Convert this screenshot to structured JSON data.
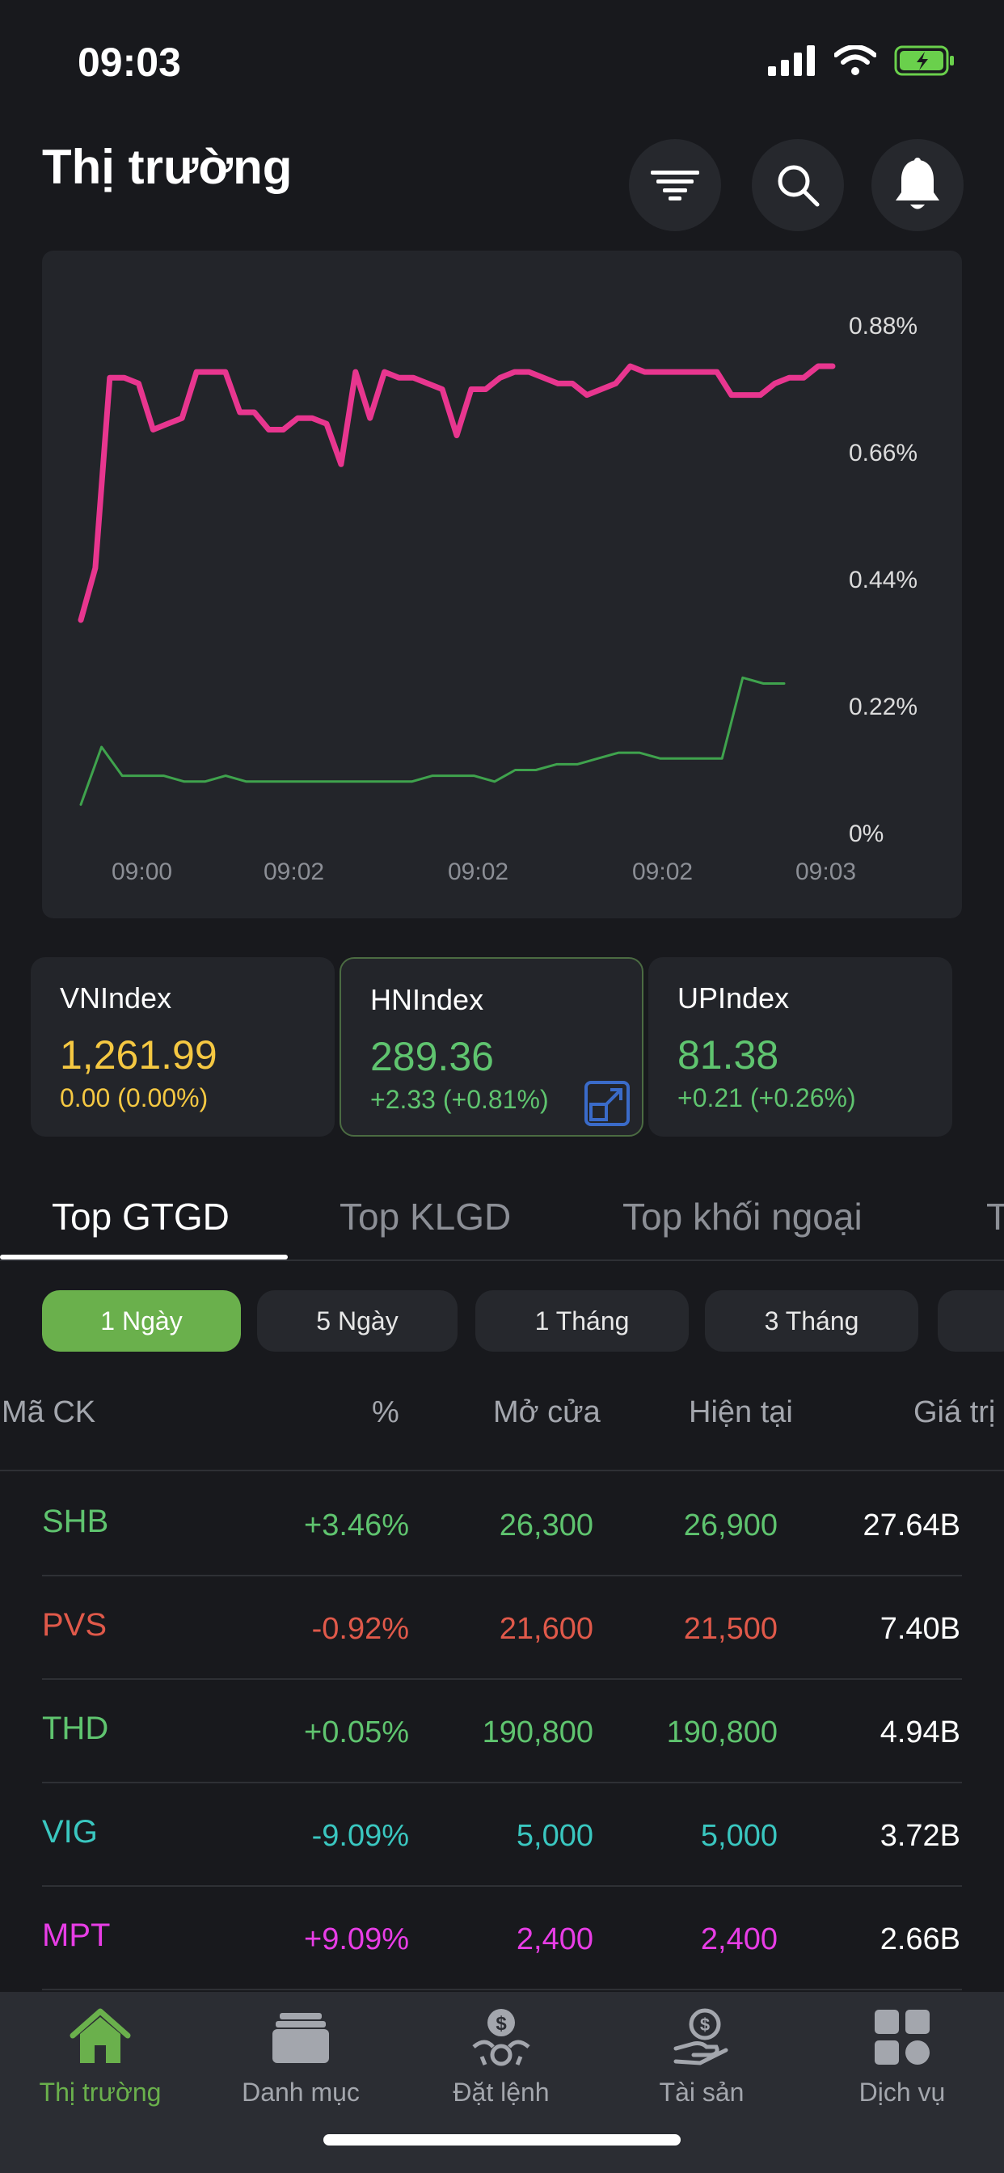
{
  "status_bar": {
    "time": "09:03"
  },
  "header": {
    "title": "Thị trường"
  },
  "chart": {
    "y_ticks": [
      "0.88%",
      "0.66%",
      "0.44%",
      "0.22%",
      "0%"
    ],
    "x_ticks": [
      "09:00",
      "09:02",
      "09:02",
      "09:02",
      "09:03"
    ]
  },
  "chart_data": {
    "type": "line",
    "ylim": [
      0,
      0.88
    ],
    "y_ticks": [
      "0.88%",
      "0.66%",
      "0.44%",
      "0.22%",
      "0%"
    ],
    "x_ticks": [
      "09:00",
      "09:02",
      "09:02",
      "09:02",
      "09:03"
    ],
    "grid": false,
    "series": [
      {
        "color": "#e8368f",
        "values": [
          0.37,
          0.46,
          0.79,
          0.79,
          0.78,
          0.7,
          0.71,
          0.72,
          0.8,
          0.8,
          0.8,
          0.73,
          0.73,
          0.7,
          0.7,
          0.72,
          0.72,
          0.71,
          0.64,
          0.8,
          0.72,
          0.8,
          0.79,
          0.79,
          0.78,
          0.77,
          0.69,
          0.77,
          0.77,
          0.79,
          0.8,
          0.8,
          0.79,
          0.78,
          0.78,
          0.76,
          0.77,
          0.78,
          0.81,
          0.8,
          0.8,
          0.8,
          0.8,
          0.8,
          0.8,
          0.76,
          0.76,
          0.76,
          0.78,
          0.79,
          0.79,
          0.81,
          0.81
        ]
      },
      {
        "color": "#3fa34d",
        "values": [
          0.05,
          0.15,
          0.1,
          0.1,
          0.1,
          0.09,
          0.09,
          0.1,
          0.09,
          0.09,
          0.09,
          0.09,
          0.09,
          0.09,
          0.09,
          0.09,
          0.09,
          0.1,
          0.1,
          0.1,
          0.09,
          0.11,
          0.11,
          0.12,
          0.12,
          0.13,
          0.14,
          0.14,
          0.13,
          0.13,
          0.13,
          0.13,
          0.27,
          0.26,
          0.26
        ]
      }
    ]
  },
  "indices": [
    {
      "name": "VNIndex",
      "value": "1,261.99",
      "change": "0.00 (0.00%)",
      "color": "#f5c842"
    },
    {
      "name": "HNIndex",
      "value": "289.36",
      "change": "+2.33 (+0.81%)",
      "color": "#5fc46f"
    },
    {
      "name": "UPIndex",
      "value": "81.38",
      "change": "+0.21 (+0.26%)",
      "color": "#5fc46f"
    }
  ],
  "tabs": [
    "Top GTGD",
    "Top KLGD",
    "Top khối ngoại",
    "T"
  ],
  "periods": [
    "1 Ngày",
    "5 Ngày",
    "1 Tháng",
    "3 Tháng"
  ],
  "table": {
    "headers": {
      "symbol": "Mã CK",
      "pct": "%",
      "open": "Mở cửa",
      "current": "Hiện tại",
      "value": "Giá trị"
    },
    "rows": [
      {
        "symbol": "SHB",
        "pct": "+3.46%",
        "open": "26,300",
        "current": "26,900",
        "value": "27.64B",
        "color": "#5fc46f"
      },
      {
        "symbol": "PVS",
        "pct": "-0.92%",
        "open": "21,600",
        "current": "21,500",
        "value": "7.40B",
        "color": "#e0594a"
      },
      {
        "symbol": "THD",
        "pct": "+0.05%",
        "open": "190,800",
        "current": "190,800",
        "value": "4.94B",
        "color": "#5fc46f"
      },
      {
        "symbol": "VIG",
        "pct": "-9.09%",
        "open": "5,000",
        "current": "5,000",
        "value": "3.72B",
        "color": "#3ac7c0"
      },
      {
        "symbol": "MPT",
        "pct": "+9.09%",
        "open": "2,400",
        "current": "2,400",
        "value": "2.66B",
        "color": "#e83de6"
      }
    ]
  },
  "nav": [
    {
      "label": "Thị trường",
      "icon": "home-icon"
    },
    {
      "label": "Danh mục",
      "icon": "portfolio-icon"
    },
    {
      "label": "Đặt lệnh",
      "icon": "order-icon"
    },
    {
      "label": "Tài sản",
      "icon": "asset-icon"
    },
    {
      "label": "Dịch vụ",
      "icon": "services-icon"
    }
  ]
}
